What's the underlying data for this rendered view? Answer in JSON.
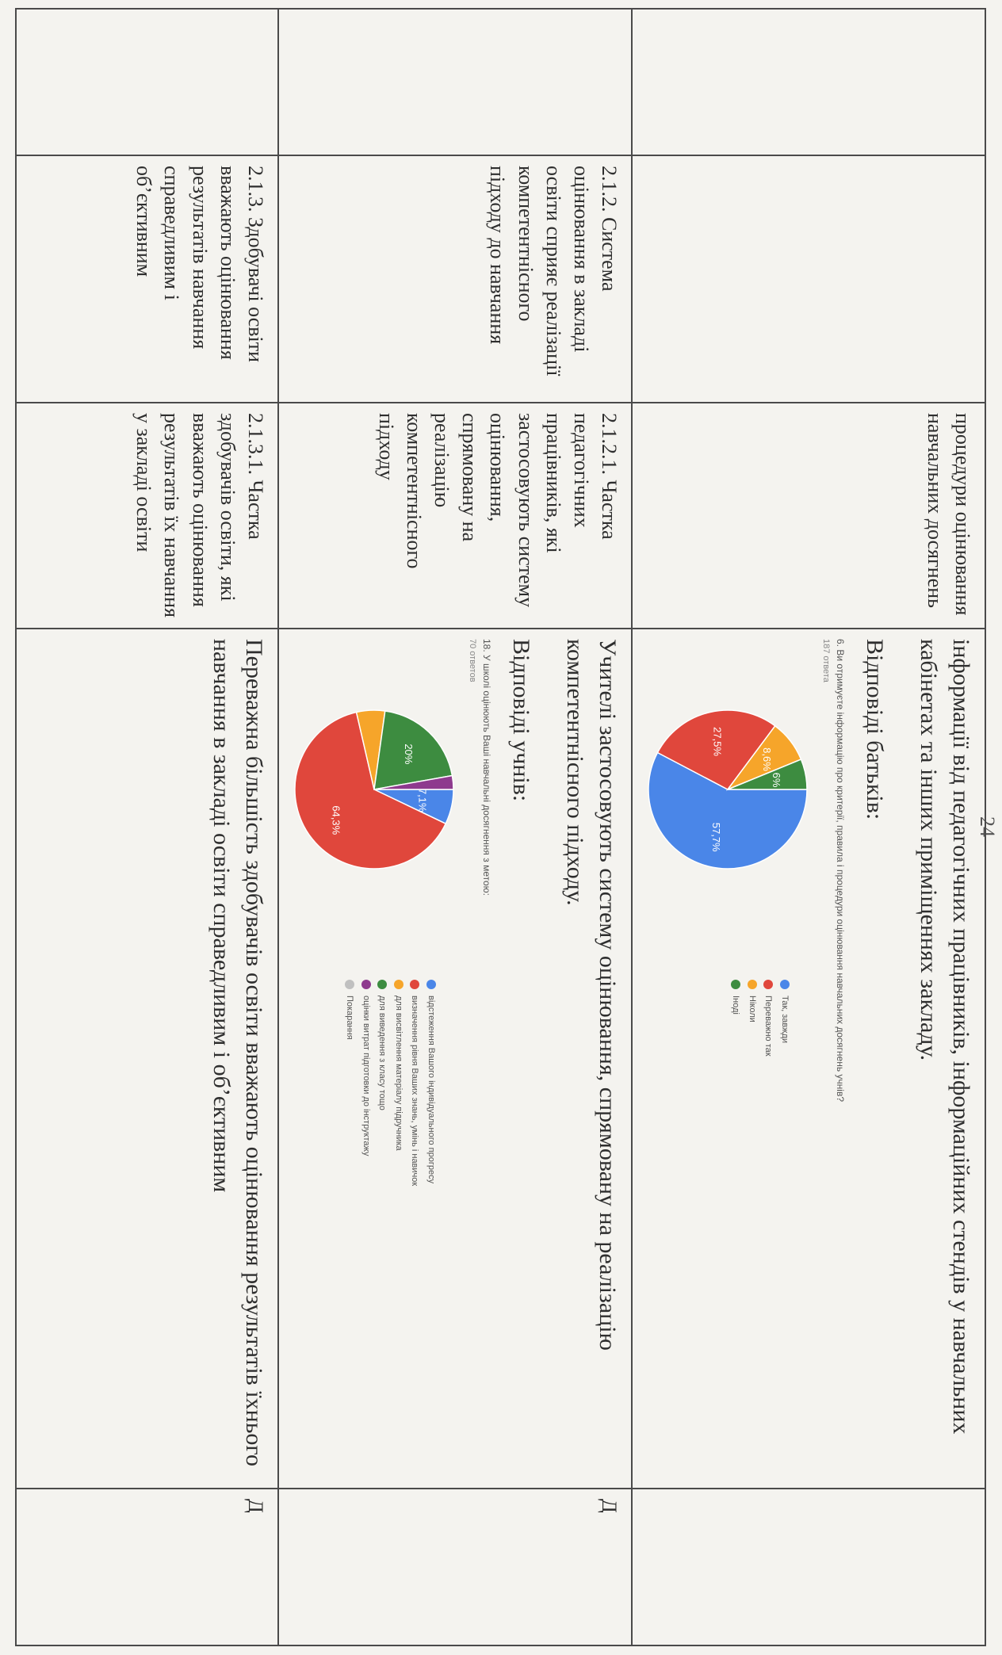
{
  "page_number": "24",
  "rows": [
    {
      "col1": "",
      "col2": "",
      "col3": "процедури оцінювання навчальних досягнень",
      "col4_text": "інформації від педагогічних працівників, інформаційних стендів у навчальних кабінетах та  інших приміщеннях закладу.",
      "col4_response_label": "Відповіді батьків:",
      "col5": ""
    },
    {
      "col1": "",
      "col2": "2.1.2. Система оцінювання в закладі освіти сприяє реалізації компетентнісного підходу до навчання",
      "col3": "2.1.2.1. Частка педагогічних працівників, які застосовують систему оцінювання, спрямовану на реалізацію компетентнісного підходу",
      "col4_text": "Учителі застосовують систему  оцінювання, спрямовану на реалізацію компетентнісного підходу.",
      "col4_response_label": "Відповіді учнів:",
      "col5": "Д"
    },
    {
      "col1": "",
      "col2": "2.1.3. Здобувачі освіти вважають оцінювання результатів навчання справедливим і об’єктивним",
      "col3": "2.1.3.1. Частка здобувачів освіти, які вважають оцінювання результатів їх навчання у закладі освіти",
      "col4_text": "Переважна більшість здобувачів освіти вважають оцінювання результатів їхнього  навчання в закладі освіти справедливим і об’єктивним",
      "col5": "Д"
    }
  ],
  "chart_data": [
    {
      "type": "pie",
      "question": "6. Ви отримуєте інформацію про критерії, правила і процедури оцінювання навчальних досягнень учнів?",
      "responses": "187 ответа",
      "categories": [
        "Так, завжди",
        "Переважно так",
        "Ніколи",
        "Іноді"
      ],
      "values": [
        57.7,
        27.5,
        8.6,
        6.2
      ],
      "labels": [
        "57,7%",
        "27,5%",
        "8,6%",
        "6%"
      ],
      "colors": [
        "#4a86e8",
        "#e0473c",
        "#f6a52a",
        "#3d8c40"
      ],
      "legend_placement": "right"
    },
    {
      "type": "pie",
      "question": "18. У школі оцінюють Ваші навчальні досягнення з метою:",
      "responses": "70 ответов",
      "categories": [
        "відстеження Вашого індивідуального прогресу",
        "визначення рівня Ваших знань, умінь і навичок",
        "для висвітлення матеріалу підручника",
        "для виведення з класу тощо",
        "оцінки витрат підготовки до інструктажу",
        "Покарання"
      ],
      "values": [
        7.1,
        64.3,
        5.8,
        20.0,
        2.8,
        0
      ],
      "labels": [
        "7,1%",
        "64,3%",
        "",
        "20%",
        "",
        ""
      ],
      "colors": [
        "#4a86e8",
        "#e0473c",
        "#f6a52a",
        "#3d8c40",
        "#8e3a8e",
        "#c0c0c0"
      ],
      "legend_placement": "right"
    }
  ]
}
